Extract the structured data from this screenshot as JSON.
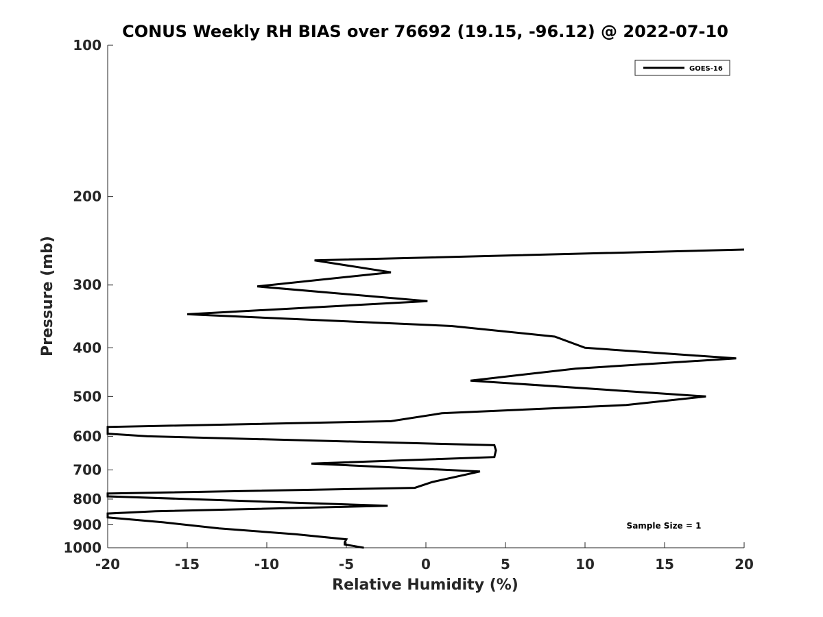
{
  "chart_data": {
    "type": "line",
    "title": "CONUS Weekly RH BIAS over 76692 (19.15, -96.12) @ 2022-07-10",
    "xlabel": "Relative Humidity (%)",
    "ylabel": "Pressure (mb)",
    "xlim": [
      -20,
      20
    ],
    "ylim": [
      1000,
      100
    ],
    "yscale": "log",
    "y_reversed": true,
    "x_ticks": [
      -20,
      -15,
      -10,
      -5,
      0,
      5,
      10,
      15,
      20
    ],
    "y_ticks": [
      100,
      200,
      300,
      400,
      500,
      600,
      700,
      800,
      900,
      1000
    ],
    "grid": false,
    "legend": {
      "placement": "top-right",
      "entries": [
        "GOES-16"
      ]
    },
    "annotation": "Sample Size = 1",
    "series": [
      {
        "name": "GOES-16",
        "color": "#000000",
        "points": [
          {
            "x": -3.9,
            "y": 1000
          },
          {
            "x": -5.1,
            "y": 985
          },
          {
            "x": -5.1,
            "y": 975
          },
          {
            "x": -5.0,
            "y": 962
          },
          {
            "x": -8.2,
            "y": 940
          },
          {
            "x": -13.0,
            "y": 915
          },
          {
            "x": -16.5,
            "y": 890
          },
          {
            "x": -20.0,
            "y": 870
          },
          {
            "x": -20.0,
            "y": 855
          },
          {
            "x": -17.0,
            "y": 846
          },
          {
            "x": -2.4,
            "y": 825
          },
          {
            "x": -20.0,
            "y": 790
          },
          {
            "x": -20.0,
            "y": 780
          },
          {
            "x": -0.7,
            "y": 760
          },
          {
            "x": 0.4,
            "y": 740
          },
          {
            "x": 3.4,
            "y": 705
          },
          {
            "x": -7.2,
            "y": 680
          },
          {
            "x": 4.3,
            "y": 660
          },
          {
            "x": 4.4,
            "y": 640
          },
          {
            "x": 4.3,
            "y": 625
          },
          {
            "x": -17.5,
            "y": 600
          },
          {
            "x": -20.0,
            "y": 593
          },
          {
            "x": -20.0,
            "y": 575
          },
          {
            "x": -2.2,
            "y": 560
          },
          {
            "x": 1.0,
            "y": 540
          },
          {
            "x": 12.6,
            "y": 520
          },
          {
            "x": 17.6,
            "y": 500
          },
          {
            "x": 2.8,
            "y": 465
          },
          {
            "x": 9.4,
            "y": 440
          },
          {
            "x": 19.5,
            "y": 420
          },
          {
            "x": 10.0,
            "y": 400
          },
          {
            "x": 8.1,
            "y": 380
          },
          {
            "x": 1.6,
            "y": 362
          },
          {
            "x": -15.0,
            "y": 343
          },
          {
            "x": 0.1,
            "y": 323
          },
          {
            "x": -10.6,
            "y": 302
          },
          {
            "x": -2.2,
            "y": 283
          },
          {
            "x": -7.0,
            "y": 268
          },
          {
            "x": 20.0,
            "y": 255
          }
        ]
      }
    ]
  }
}
